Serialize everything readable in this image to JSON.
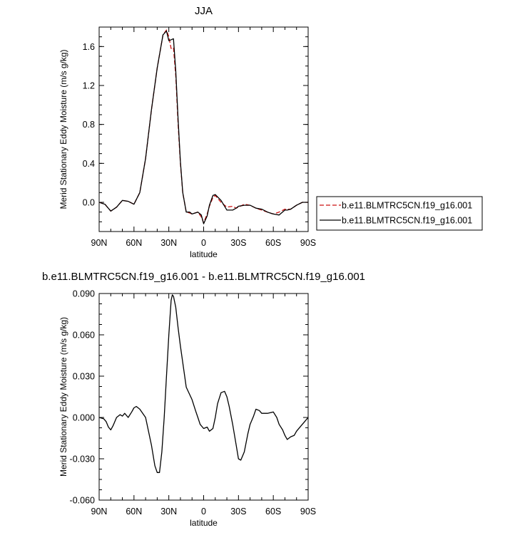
{
  "chart_data": [
    {
      "type": "line",
      "title": "JJA",
      "xlabel": "latitude",
      "ylabel": "Merid Stationary Eddy Moisture (m/s g/kg)",
      "xlim": [
        90,
        -90
      ],
      "ylim": [
        -0.3,
        1.8
      ],
      "xticks": [
        90,
        60,
        30,
        0,
        -30,
        -60,
        -90
      ],
      "xtick_labels": [
        "90N",
        "60N",
        "30N",
        "0",
        "30S",
        "60S",
        "90S"
      ],
      "yticks": [
        0.0,
        0.4,
        0.8,
        1.2,
        1.6
      ],
      "ytick_labels": [
        "0.0",
        "0.4",
        "0.8",
        "1.2",
        "1.6"
      ],
      "legend_position": "right",
      "series": [
        {
          "name": "b.e11.BLMTRC5CN.f19_g16.001",
          "color": "#cc1111",
          "dash": "dashed",
          "x": [
            90,
            85,
            80,
            75,
            70,
            65,
            60,
            55,
            50,
            45,
            40,
            35,
            32,
            30,
            28,
            26,
            24,
            22,
            20,
            18,
            15,
            12,
            10,
            5,
            2,
            0,
            -3,
            -5,
            -8,
            -10,
            -15,
            -20,
            -25,
            -28,
            -30,
            -35,
            -40,
            -45,
            -50,
            -55,
            -60,
            -65,
            -70,
            -72,
            -75,
            -80,
            -85,
            -90
          ],
          "y": [
            0.0,
            -0.02,
            -0.09,
            -0.05,
            0.02,
            0.01,
            -0.02,
            0.1,
            0.45,
            0.95,
            1.38,
            1.72,
            1.77,
            1.7,
            1.58,
            1.59,
            1.3,
            0.8,
            0.4,
            0.1,
            -0.1,
            -0.11,
            -0.12,
            -0.1,
            -0.15,
            -0.21,
            -0.12,
            -0.04,
            0.05,
            0.07,
            0.0,
            -0.05,
            -0.04,
            -0.06,
            -0.05,
            -0.02,
            -0.03,
            -0.06,
            -0.08,
            -0.1,
            -0.12,
            -0.1,
            -0.07,
            -0.07,
            -0.07,
            -0.03,
            0.0,
            0.0
          ]
        },
        {
          "name": "b.e11.BLMTRC5CN.f19_g16.001",
          "color": "#000000",
          "dash": "solid",
          "x": [
            90,
            85,
            80,
            75,
            70,
            65,
            60,
            55,
            50,
            45,
            40,
            35,
            32,
            30,
            28,
            26,
            24,
            22,
            20,
            18,
            15,
            12,
            10,
            5,
            2,
            0,
            -3,
            -5,
            -8,
            -10,
            -15,
            -20,
            -25,
            -28,
            -30,
            -35,
            -40,
            -45,
            -50,
            -55,
            -60,
            -65,
            -70,
            -72,
            -75,
            -80,
            -85,
            -90
          ],
          "y": [
            0.0,
            -0.02,
            -0.09,
            -0.05,
            0.02,
            0.01,
            -0.02,
            0.1,
            0.45,
            0.95,
            1.38,
            1.72,
            1.76,
            1.66,
            1.67,
            1.68,
            1.35,
            0.85,
            0.42,
            0.1,
            -0.1,
            -0.1,
            -0.12,
            -0.1,
            -0.13,
            -0.22,
            -0.14,
            -0.03,
            0.07,
            0.08,
            0.02,
            -0.08,
            -0.08,
            -0.06,
            -0.04,
            -0.03,
            -0.03,
            -0.06,
            -0.07,
            -0.1,
            -0.12,
            -0.13,
            -0.08,
            -0.08,
            -0.07,
            -0.03,
            0.0,
            0.0
          ]
        }
      ]
    },
    {
      "type": "line",
      "title": "b.e11.BLMTRC5CN.f19_g16.001 - b.e11.BLMTRC5CN.f19_g16.001",
      "xlabel": "latitude",
      "ylabel": "Merid Stationary Eddy Moisture (m/s g/kg)",
      "xlim": [
        90,
        -90
      ],
      "ylim": [
        -0.06,
        0.09
      ],
      "xticks": [
        90,
        60,
        30,
        0,
        -30,
        -60,
        -90
      ],
      "xtick_labels": [
        "90N",
        "60N",
        "30N",
        "0",
        "30S",
        "60S",
        "90S"
      ],
      "yticks": [
        -0.06,
        -0.03,
        0.0,
        0.03,
        0.06,
        0.09
      ],
      "ytick_labels": [
        "-0.060",
        "-0.030",
        "0.000",
        "0.030",
        "0.060",
        "0.090"
      ],
      "series": [
        {
          "color": "#000000",
          "dash": "solid",
          "x": [
            90,
            86,
            84,
            82,
            80,
            78,
            75,
            72,
            70,
            68,
            65,
            62,
            60,
            58,
            55,
            50,
            45,
            42,
            40,
            38,
            36,
            34,
            32,
            30,
            28,
            27,
            26,
            24,
            22,
            20,
            15,
            10,
            7,
            5,
            3,
            0,
            -3,
            -5,
            -8,
            -10,
            -12,
            -15,
            -18,
            -20,
            -22,
            -25,
            -28,
            -30,
            -32,
            -35,
            -38,
            -40,
            -43,
            -45,
            -48,
            -50,
            -55,
            -60,
            -63,
            -65,
            -68,
            -70,
            -72,
            -75,
            -78,
            -80,
            -84,
            -87,
            -90
          ],
          "y": [
            0.0,
            -0.001,
            -0.003,
            -0.007,
            -0.009,
            -0.006,
            0.0,
            0.002,
            0.001,
            0.003,
            0.0,
            0.004,
            0.007,
            0.008,
            0.006,
            0.0,
            -0.02,
            -0.035,
            -0.04,
            -0.04,
            -0.025,
            0.0,
            0.03,
            0.06,
            0.085,
            0.089,
            0.088,
            0.08,
            0.065,
            0.052,
            0.022,
            0.013,
            0.005,
            0.0,
            -0.005,
            -0.008,
            -0.007,
            -0.01,
            -0.008,
            0.0,
            0.01,
            0.018,
            0.019,
            0.015,
            0.008,
            -0.005,
            -0.02,
            -0.03,
            -0.031,
            -0.025,
            -0.012,
            -0.005,
            0.001,
            0.006,
            0.005,
            0.003,
            0.003,
            0.004,
            0.0,
            -0.005,
            -0.009,
            -0.013,
            -0.016,
            -0.014,
            -0.013,
            -0.01,
            -0.006,
            -0.003,
            0.0
          ]
        }
      ]
    }
  ]
}
